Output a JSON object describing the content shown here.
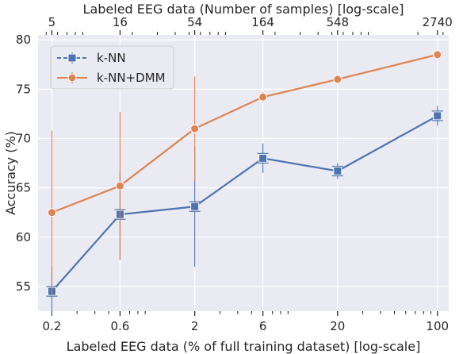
{
  "chart_data": {
    "type": "line",
    "x": [
      0.2,
      0.6,
      2,
      6,
      20,
      100
    ],
    "xscale": "log",
    "xlabel": "Labeled EEG data (% of full training dataset) [log-scale]",
    "xtick_labels": [
      "0.2",
      "0.6",
      "2",
      "6",
      "20",
      "100"
    ],
    "xlim": [
      0.16,
      120
    ],
    "x2label": "Labeled EEG data (Number of samples) [log-scale]",
    "x2tick_labels": [
      "5",
      "16",
      "54",
      "164",
      "548",
      "2740"
    ],
    "ylabel": "Accuracy (%)",
    "ylim": [
      52.5,
      80.5
    ],
    "yticks": [
      55,
      60,
      65,
      70,
      75,
      80
    ],
    "grid": true,
    "background": "#eaeaf2",
    "legend_position": "top-left",
    "series": [
      {
        "name": "k-NN",
        "color": "#4c72b0",
        "marker": "square",
        "values": [
          54.5,
          62.3,
          63.1,
          68.0,
          66.7,
          72.3
        ],
        "error": [
          2.5,
          4.5,
          6.1,
          1.5,
          0.8,
          1.0
        ]
      },
      {
        "name": "k-NN+DMM",
        "color": "#dd8452",
        "marker": "circle",
        "values": [
          62.5,
          65.2,
          71.0,
          74.2,
          76.0,
          78.5
        ],
        "error": [
          8.3,
          7.5,
          5.3,
          0.5,
          0.3,
          0.2
        ]
      }
    ]
  }
}
